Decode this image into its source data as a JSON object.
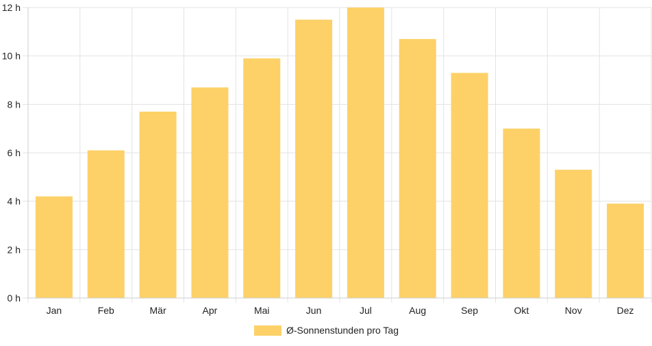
{
  "chart_data": {
    "type": "bar",
    "categories": [
      "Jan",
      "Feb",
      "Mär",
      "Apr",
      "Mai",
      "Jun",
      "Jul",
      "Aug",
      "Sep",
      "Okt",
      "Nov",
      "Dez"
    ],
    "series": [
      {
        "name": "Ø-Sonnenstunden pro Tag",
        "values": [
          4.2,
          6.1,
          7.7,
          8.7,
          9.9,
          11.5,
          12.0,
          10.7,
          9.3,
          7.0,
          5.3,
          3.9
        ]
      }
    ],
    "y_ticks": [
      "0 h",
      "2 h",
      "4 h",
      "6 h",
      "8 h",
      "10 h",
      "12 h"
    ],
    "ylim": [
      0,
      12
    ],
    "grid": true,
    "legend_position": "bottom",
    "colors": {
      "bar": "#fdd168",
      "grid": "#e3e3e3",
      "axis": "#cccccc",
      "text": "#222222"
    }
  }
}
